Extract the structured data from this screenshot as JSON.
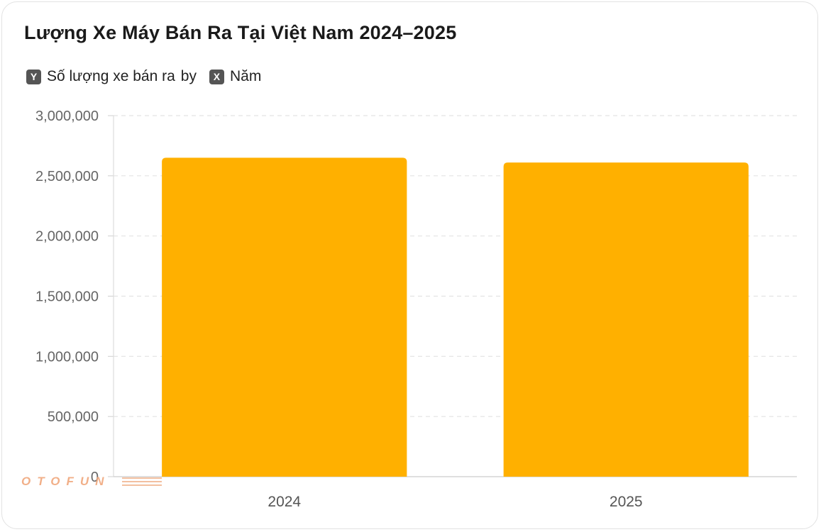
{
  "chart_data": {
    "type": "bar",
    "title": "Lượng Xe Máy Bán Ra Tại Việt Nam 2024–2025",
    "legend": {
      "y_badge": "Y",
      "y_label": "Số lượng xe bán ra",
      "by_text": "by",
      "x_badge": "X",
      "x_label": "Năm"
    },
    "categories": [
      "2024",
      "2025"
    ],
    "values": [
      2650000,
      2610000
    ],
    "ylim": [
      0,
      3000000
    ],
    "yticks": [
      0,
      500000,
      1000000,
      1500000,
      2000000,
      2500000,
      3000000
    ],
    "ytick_labels": [
      "0",
      "500,000",
      "1,000,000",
      "1,500,000",
      "2,000,000",
      "2,500,000",
      "3,000,000"
    ],
    "grid": true,
    "bar_color": "#FFB000",
    "grid_color": "#e3e3e3"
  },
  "watermark": "OTOFUN"
}
